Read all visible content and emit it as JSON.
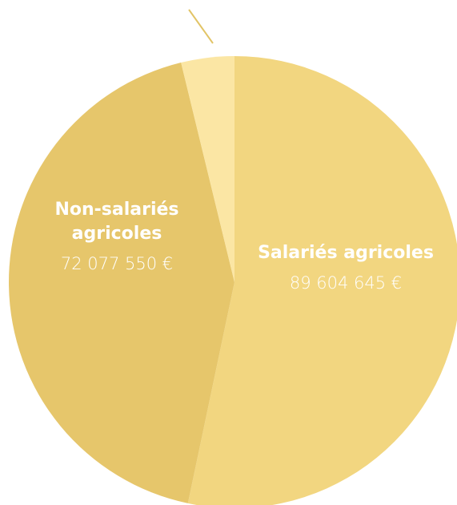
{
  "chart_data": {
    "type": "pie",
    "categories": [
      "Salariés agricoles",
      "Non-salariés\nagricoles",
      null
    ],
    "values": [
      89604645,
      72077550,
      6400000
    ],
    "value_labels": [
      "89 604 645 €",
      "72 077 550 €",
      null
    ],
    "colors": [
      "#f2d680",
      "#e6c66b",
      "#fbe6a4"
    ]
  }
}
